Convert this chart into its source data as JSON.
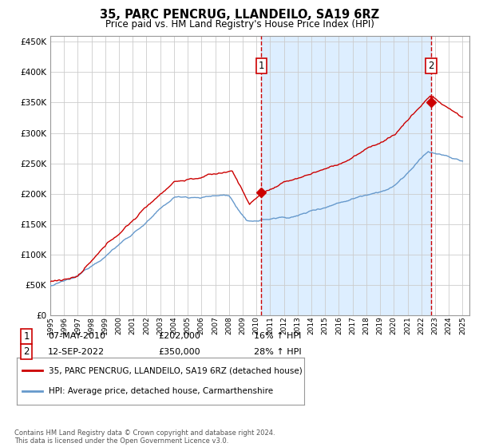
{
  "title": "35, PARC PENCRUG, LLANDEILO, SA19 6RZ",
  "subtitle": "Price paid vs. HM Land Registry's House Price Index (HPI)",
  "footer": "Contains HM Land Registry data © Crown copyright and database right 2024.\nThis data is licensed under the Open Government Licence v3.0.",
  "legend_line1": "35, PARC PENCRUG, LLANDEILO, SA19 6RZ (detached house)",
  "legend_line2": "HPI: Average price, detached house, Carmarthenshire",
  "sale1_label": "1",
  "sale1_date": "07-MAY-2010",
  "sale1_price": "£202,000",
  "sale1_hpi": "16% ↑ HPI",
  "sale2_label": "2",
  "sale2_date": "12-SEP-2022",
  "sale2_price": "£350,000",
  "sale2_hpi": "28% ↑ HPI",
  "red_color": "#cc0000",
  "blue_color": "#6699cc",
  "shade_color": "#ddeeff",
  "bg_color": "#ffffff",
  "grid_color": "#cccccc",
  "ylim": [
    0,
    460000
  ],
  "yticks": [
    0,
    50000,
    100000,
    150000,
    200000,
    250000,
    300000,
    350000,
    400000,
    450000
  ],
  "sale1_year": 2010.35,
  "sale2_year": 2022.71,
  "sale1_value_red": 202000,
  "sale2_value_red": 350000,
  "xmin": 1995,
  "xmax": 2025.5
}
